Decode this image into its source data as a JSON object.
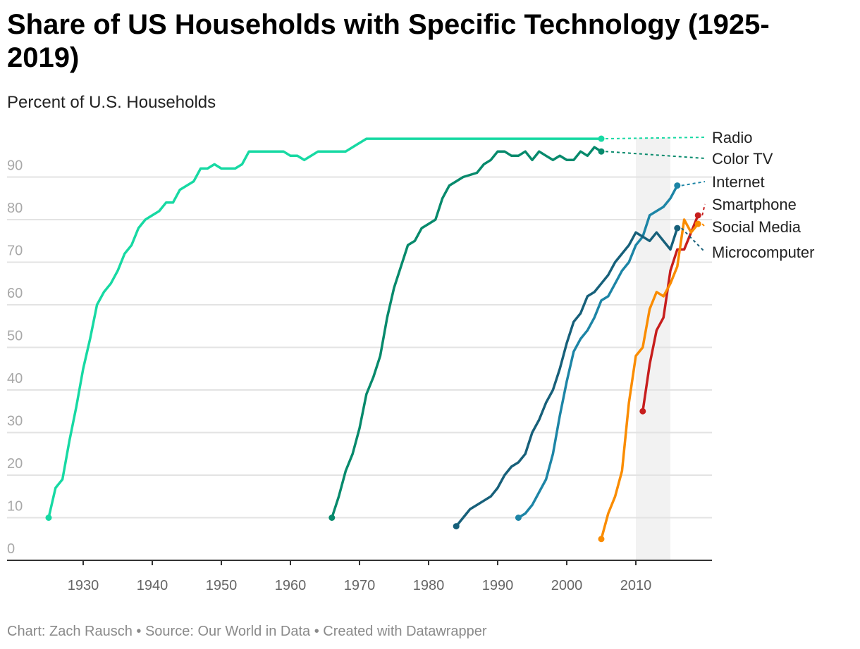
{
  "chart_data": {
    "type": "line",
    "title": "Share of US Households with Specific Technology (1925-2019)",
    "subtitle": "Percent of U.S. Households",
    "footer": "Chart: Zach Rausch • Source: Our World in Data • Created with Datawrapper",
    "xlim": [
      1920,
      2021
    ],
    "ylim": [
      0,
      100
    ],
    "x_ticks": [
      "1930",
      "1940",
      "1950",
      "1960",
      "1970",
      "1980",
      "1990",
      "2000",
      "2010"
    ],
    "y_ticks": [
      "0",
      "10",
      "20",
      "30",
      "40",
      "50",
      "60",
      "70",
      "80",
      "90"
    ],
    "grid": true,
    "highlight_band": [
      2010,
      2015
    ],
    "legend": "direct labels right",
    "series": [
      {
        "name": "Radio",
        "color": "#17d9a3",
        "x": [
          1925,
          1926,
          1927,
          1928,
          1929,
          1930,
          1931,
          1932,
          1933,
          1934,
          1935,
          1936,
          1937,
          1938,
          1939,
          1940,
          1941,
          1942,
          1943,
          1944,
          1945,
          1946,
          1947,
          1948,
          1949,
          1950,
          1951,
          1952,
          1953,
          1954,
          1959,
          1960,
          1961,
          1962,
          1963,
          1964,
          1968,
          1969,
          1970,
          1971,
          2005
        ],
        "y": [
          10,
          17,
          19,
          28,
          36,
          45,
          52,
          60,
          63,
          65,
          68,
          72,
          74,
          78,
          80,
          81,
          82,
          84,
          84,
          87,
          88,
          89,
          92,
          92,
          93,
          92,
          92,
          92,
          93,
          96,
          96,
          95,
          95,
          94,
          95,
          96,
          96,
          97,
          98,
          99,
          99
        ]
      },
      {
        "name": "Color TV",
        "color": "#078a6c",
        "x": [
          1966,
          1967,
          1968,
          1969,
          1970,
          1971,
          1972,
          1973,
          1974,
          1975,
          1976,
          1977,
          1978,
          1979,
          1980,
          1981,
          1982,
          1983,
          1984,
          1985,
          1986,
          1987,
          1988,
          1989,
          1990,
          1991,
          1992,
          1993,
          1994,
          1995,
          1996,
          1997,
          1998,
          1999,
          2000,
          2001,
          2002,
          2003,
          2004,
          2005
        ],
        "y": [
          10,
          15,
          21,
          25,
          31,
          39,
          43,
          48,
          57,
          64,
          69,
          74,
          75,
          78,
          79,
          80,
          85,
          88,
          89,
          90,
          90.5,
          91,
          93,
          94,
          96,
          96,
          95,
          95,
          96,
          94,
          96,
          95,
          94,
          95,
          94,
          94,
          96,
          95,
          97,
          96
        ]
      },
      {
        "name": "Internet",
        "color": "#1d85a6",
        "x": [
          1993,
          1994,
          1995,
          1996,
          1997,
          1998,
          1999,
          2000,
          2001,
          2002,
          2003,
          2004,
          2005,
          2006,
          2007,
          2008,
          2009,
          2010,
          2011,
          2012,
          2013,
          2014,
          2015,
          2016
        ],
        "y": [
          10,
          11,
          13,
          16,
          19,
          25,
          34,
          42,
          49,
          52,
          54,
          57,
          61,
          62,
          65,
          68,
          70,
          74,
          76,
          81,
          82,
          83,
          85,
          88
        ]
      },
      {
        "name": "Smartphone",
        "color": "#c71e1d",
        "x": [
          2011,
          2012,
          2013,
          2014,
          2015,
          2016,
          2017,
          2018,
          2019
        ],
        "y": [
          35,
          46,
          54,
          57,
          68,
          73,
          73,
          77,
          81
        ]
      },
      {
        "name": "Social Media",
        "color": "#fa8c00",
        "x": [
          2005,
          2006,
          2007,
          2008,
          2009,
          2010,
          2011,
          2012,
          2013,
          2014,
          2015,
          2016,
          2017,
          2018,
          2019
        ],
        "y": [
          5,
          11,
          15,
          21,
          37,
          48,
          50,
          59,
          63,
          62,
          65,
          69,
          80,
          77,
          79
        ]
      },
      {
        "name": "Microcomputer",
        "color": "#17607a",
        "x": [
          1984,
          1985,
          1986,
          1987,
          1988,
          1989,
          1990,
          1991,
          1992,
          1993,
          1994,
          1995,
          1996,
          1997,
          1998,
          1999,
          2000,
          2001,
          2002,
          2003,
          2004,
          2005,
          2006,
          2007,
          2008,
          2009,
          2010,
          2011,
          2012,
          2013,
          2014,
          2015,
          2016
        ],
        "y": [
          8,
          10,
          12,
          13,
          14,
          15,
          17,
          20,
          22,
          23,
          25,
          30,
          33,
          37,
          40,
          45,
          51,
          56,
          58,
          62,
          63,
          65,
          67,
          70,
          72,
          74,
          77,
          76,
          75,
          77,
          75,
          73,
          78
        ]
      }
    ]
  }
}
